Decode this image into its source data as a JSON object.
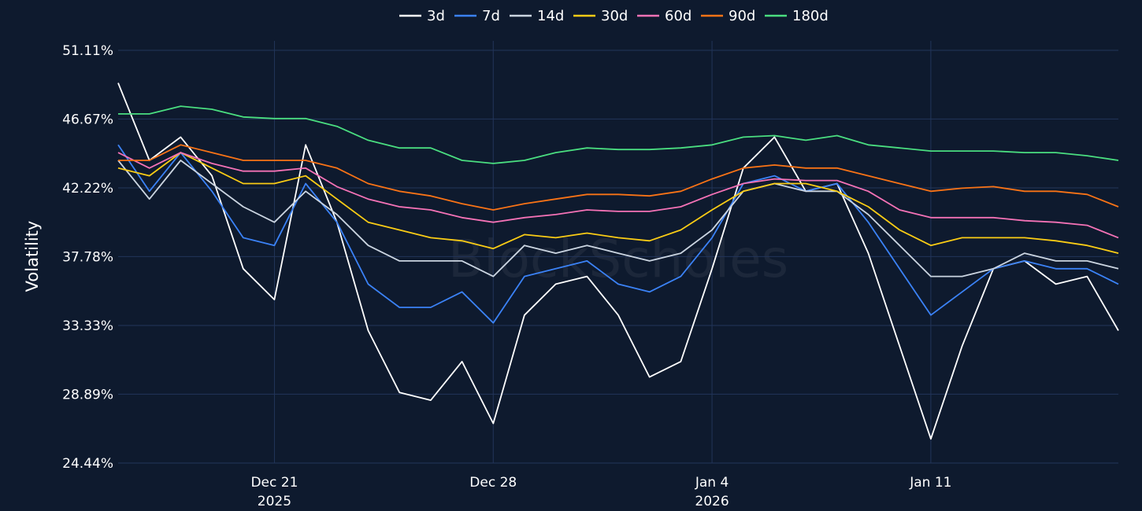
{
  "watermark": "BlockScholes",
  "chart_data": {
    "type": "line",
    "title": "",
    "xlabel": "",
    "ylabel": "Volatility",
    "x_start": "2025-12-16",
    "x_end": "2026-01-17",
    "ylim": [
      24.44,
      51.11
    ],
    "y_ticks": [
      "24.44%",
      "28.89%",
      "33.33%",
      "37.78%",
      "42.22%",
      "46.67%",
      "51.11%"
    ],
    "x_ticks": [
      {
        "date": "2025-12-21",
        "label": "Dec 21",
        "sublabel": "2025"
      },
      {
        "date": "2025-12-28",
        "label": "Dec 28",
        "sublabel": ""
      },
      {
        "date": "2026-01-04",
        "label": "Jan 4",
        "sublabel": "2026"
      },
      {
        "date": "2026-01-11",
        "label": "Jan 11",
        "sublabel": ""
      }
    ],
    "legend_position": "top-center",
    "grid": true,
    "x": [
      "2025-12-16",
      "2025-12-17",
      "2025-12-18",
      "2025-12-19",
      "2025-12-20",
      "2025-12-21",
      "2025-12-22",
      "2025-12-23",
      "2025-12-24",
      "2025-12-25",
      "2025-12-26",
      "2025-12-27",
      "2025-12-28",
      "2025-12-29",
      "2025-12-30",
      "2025-12-31",
      "2026-01-01",
      "2026-01-02",
      "2026-01-03",
      "2026-01-04",
      "2026-01-05",
      "2026-01-06",
      "2026-01-07",
      "2026-01-08",
      "2026-01-09",
      "2026-01-10",
      "2026-01-11",
      "2026-01-12",
      "2026-01-13",
      "2026-01-14",
      "2026-01-15",
      "2026-01-16",
      "2026-01-17"
    ],
    "series": [
      {
        "name": "3d",
        "color": "#ffffff",
        "values": [
          49.0,
          44.0,
          45.5,
          43.0,
          37.0,
          35.0,
          45.0,
          40.0,
          33.0,
          29.0,
          28.5,
          31.0,
          27.0,
          34.0,
          36.0,
          36.5,
          34.0,
          30.0,
          31.0,
          37.0,
          43.5,
          45.5,
          42.0,
          42.5,
          38.0,
          32.0,
          26.0,
          32.0,
          37.0,
          37.5,
          36.0,
          36.5,
          33.0
        ]
      },
      {
        "name": "7d",
        "color": "#3b82f6",
        "values": [
          45.0,
          42.0,
          44.5,
          42.0,
          39.0,
          38.5,
          42.5,
          40.0,
          36.0,
          34.5,
          34.5,
          35.5,
          33.5,
          36.5,
          37.0,
          37.5,
          36.0,
          35.5,
          36.5,
          39.0,
          42.5,
          43.0,
          42.0,
          42.5,
          40.0,
          37.0,
          34.0,
          35.5,
          37.0,
          37.5,
          37.0,
          37.0,
          36.0
        ]
      },
      {
        "name": "14d",
        "color": "#cbd5e1",
        "values": [
          44.0,
          41.5,
          44.0,
          42.5,
          41.0,
          40.0,
          42.0,
          40.5,
          38.5,
          37.5,
          37.5,
          37.5,
          36.5,
          38.5,
          38.0,
          38.5,
          38.0,
          37.5,
          38.0,
          39.5,
          42.0,
          42.5,
          42.0,
          42.0,
          40.5,
          38.5,
          36.5,
          36.5,
          37.0,
          38.0,
          37.5,
          37.5,
          37.0
        ]
      },
      {
        "name": "30d",
        "color": "#facc15",
        "values": [
          43.5,
          43.0,
          44.5,
          43.5,
          42.5,
          42.5,
          43.0,
          41.5,
          40.0,
          39.5,
          39.0,
          38.8,
          38.3,
          39.2,
          39.0,
          39.3,
          39.0,
          38.8,
          39.5,
          40.8,
          42.0,
          42.5,
          42.5,
          42.0,
          41.0,
          39.5,
          38.5,
          39.0,
          39.0,
          39.0,
          38.8,
          38.5,
          38.0
        ]
      },
      {
        "name": "60d",
        "color": "#f472b6",
        "values": [
          44.5,
          43.5,
          44.5,
          43.8,
          43.3,
          43.3,
          43.5,
          42.3,
          41.5,
          41.0,
          40.8,
          40.3,
          40.0,
          40.3,
          40.5,
          40.8,
          40.7,
          40.7,
          41.0,
          41.8,
          42.5,
          42.8,
          42.7,
          42.7,
          42.0,
          40.8,
          40.3,
          40.3,
          40.3,
          40.1,
          40.0,
          39.8,
          39.0
        ]
      },
      {
        "name": "90d",
        "color": "#f97316",
        "values": [
          44.0,
          44.0,
          45.0,
          44.5,
          44.0,
          44.0,
          44.0,
          43.5,
          42.5,
          42.0,
          41.7,
          41.2,
          40.8,
          41.2,
          41.5,
          41.8,
          41.8,
          41.7,
          42.0,
          42.8,
          43.5,
          43.7,
          43.5,
          43.5,
          43.0,
          42.5,
          42.0,
          42.2,
          42.3,
          42.0,
          42.0,
          41.8,
          41.0
        ]
      },
      {
        "name": "180d",
        "color": "#4ade80",
        "values": [
          47.0,
          47.0,
          47.5,
          47.3,
          46.8,
          46.7,
          46.7,
          46.2,
          45.3,
          44.8,
          44.8,
          44.0,
          43.8,
          44.0,
          44.5,
          44.8,
          44.7,
          44.7,
          44.8,
          45.0,
          45.5,
          45.6,
          45.3,
          45.6,
          45.0,
          44.8,
          44.6,
          44.6,
          44.6,
          44.5,
          44.5,
          44.3,
          44.0
        ]
      }
    ]
  }
}
